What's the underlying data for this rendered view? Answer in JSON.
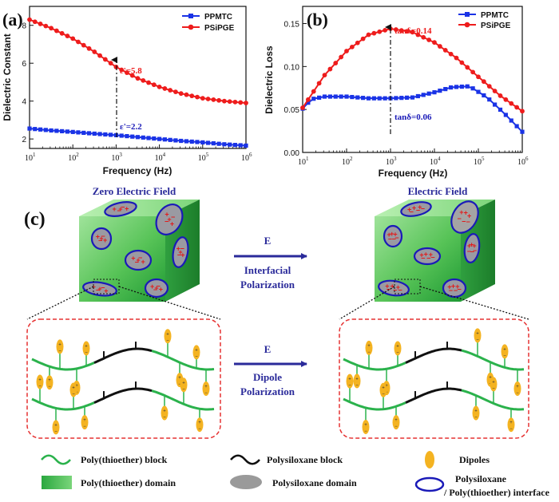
{
  "colors": {
    "ppmtc": "#1a33e6",
    "psipge": "#ee1c1c",
    "polythioether": "#2bb24c",
    "polysiloxane": "#111111",
    "dipole": "#f4b321",
    "interface": "#1a1ab8",
    "annotation_blue": "#1a1ab8",
    "label_purple": "#2a2a9a",
    "dashed_box": "#e63232"
  },
  "chart_data": [
    {
      "panel": "(a)",
      "type": "line",
      "xscale": "log",
      "xlabel": "Frequency (Hz)",
      "ylabel": "Dielectric Constant",
      "xticks": [
        {
          "value": 10,
          "base": "10",
          "exp": "1"
        },
        {
          "value": 100,
          "base": "10",
          "exp": "2"
        },
        {
          "value": 1000,
          "base": "10",
          "exp": "3"
        },
        {
          "value": 10000,
          "base": "10",
          "exp": "4"
        },
        {
          "value": 100000,
          "base": "10",
          "exp": "5"
        },
        {
          "value": 1000000,
          "base": "10",
          "exp": "6"
        }
      ],
      "yticks": [
        "2",
        "4",
        "6",
        "8"
      ],
      "ylim": [
        1.5,
        9.0
      ],
      "xlim_log10": [
        1,
        6
      ],
      "legend": [
        "PPMTC",
        "PSiPGE"
      ],
      "series": [
        {
          "name": "PPMTC",
          "x_log10": [
            1,
            1.5,
            2,
            2.5,
            3,
            3.5,
            4,
            4.5,
            5,
            5.5,
            6
          ],
          "values": [
            2.55,
            2.45,
            2.37,
            2.28,
            2.2,
            2.1,
            2.0,
            1.9,
            1.82,
            1.72,
            1.65
          ]
        },
        {
          "name": "PSiPGE",
          "x_log10": [
            1,
            1.5,
            2,
            2.5,
            3,
            3.5,
            4,
            4.5,
            5,
            5.5,
            6
          ],
          "values": [
            8.3,
            7.85,
            7.3,
            6.6,
            5.8,
            5.2,
            4.75,
            4.4,
            4.15,
            4.0,
            3.9
          ]
        }
      ],
      "annotations": [
        {
          "text": "ε'=5.8",
          "x_log10": 3,
          "y": 5.8,
          "color": "psipge"
        },
        {
          "text": "ε'=2.2",
          "x_log10": 3,
          "y": 2.2,
          "color": "ppmtc"
        }
      ]
    },
    {
      "panel": "(b)",
      "type": "line",
      "xscale": "log",
      "xlabel": "Frequency (Hz)",
      "ylabel": "Dielectric Loss",
      "xticks": [
        {
          "value": 10,
          "base": "10",
          "exp": "1"
        },
        {
          "value": 100,
          "base": "10",
          "exp": "2"
        },
        {
          "value": 1000,
          "base": "10",
          "exp": "3"
        },
        {
          "value": 10000,
          "base": "10",
          "exp": "4"
        },
        {
          "value": 100000,
          "base": "10",
          "exp": "5"
        },
        {
          "value": 1000000,
          "base": "10",
          "exp": "6"
        }
      ],
      "yticks": [
        "0.00",
        "0.05",
        "0.10",
        "0.15"
      ],
      "ylim": [
        0.0,
        0.17
      ],
      "xlim_log10": [
        1,
        6
      ],
      "legend": [
        "PPMTC",
        "PSiPGE"
      ],
      "series": [
        {
          "name": "PPMTC",
          "x_log10": [
            1,
            1.2,
            1.5,
            2,
            2.5,
            3,
            3.5,
            4,
            4.4,
            4.8,
            5.2,
            5.6,
            6
          ],
          "values": [
            0.051,
            0.062,
            0.065,
            0.065,
            0.063,
            0.063,
            0.064,
            0.07,
            0.076,
            0.077,
            0.064,
            0.045,
            0.024
          ]
        },
        {
          "name": "PSiPGE",
          "x_log10": [
            1,
            1.5,
            2,
            2.5,
            3,
            3.5,
            4,
            4.5,
            5,
            5.5,
            6
          ],
          "values": [
            0.052,
            0.09,
            0.118,
            0.137,
            0.144,
            0.14,
            0.128,
            0.11,
            0.088,
            0.066,
            0.048
          ]
        }
      ],
      "annotations": [
        {
          "text": "tanδ=0.14",
          "x_log10": 3,
          "y": 0.144,
          "color": "psipge"
        },
        {
          "text": "tanδ=0.06",
          "x_log10": 3,
          "y": 0.063,
          "color": "ppmtc"
        }
      ]
    }
  ],
  "diagram": {
    "panel_label": "(c)",
    "left_title": "Zero Electric Field",
    "right_title": "Electric Field",
    "arrow_top": {
      "label": "E",
      "line1": "Interfacial",
      "line2": "Polarization"
    },
    "arrow_bottom": {
      "label": "E",
      "line1": "Dipole",
      "line2": "Polarization"
    }
  },
  "legend": {
    "polythioether_block": "Poly(thioether) block",
    "polysiloxane_block": "Polysiloxane block",
    "dipoles": "Dipoles",
    "polythioether_domain": "Poly(thioether) domain",
    "polysiloxane_domain": "Polysiloxane domain",
    "interface_line1": "Polysiloxane",
    "interface_line2": "/ Poly(thioether) interface"
  }
}
